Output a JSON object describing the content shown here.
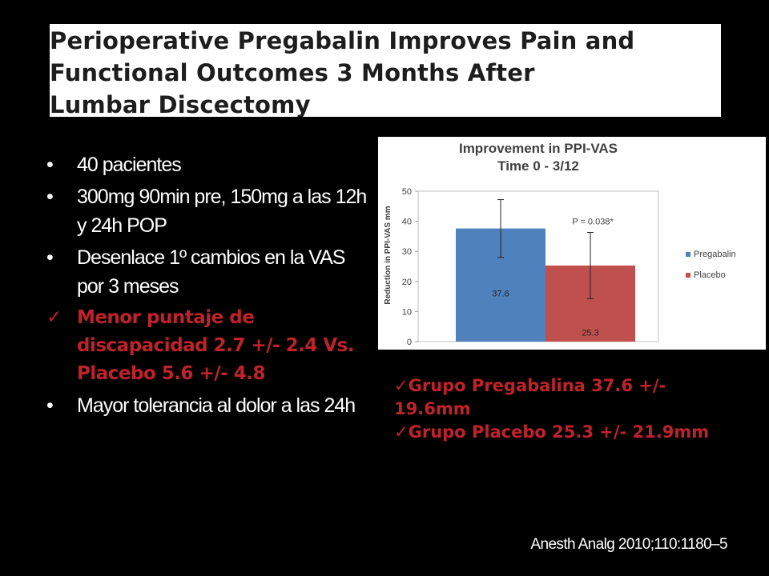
{
  "slide": {
    "title_lines": [
      "Perioperative Pregabalin Improves Pain and",
      "Functional Outcomes 3 Months After",
      "Lumbar Discectomy"
    ],
    "bullets": [
      {
        "marker": "•",
        "text": "40 pacientes",
        "style": "normal"
      },
      {
        "marker": "•",
        "text": "300mg 90min pre, 150mg a las 12h y 24h POP",
        "style": "normal"
      },
      {
        "marker": "•",
        "text": "Desenlace 1º cambios en la VAS por 3 meses",
        "style": "normal"
      },
      {
        "marker": "✓",
        "text": "Menor puntaje de discapacidad 2.7 +/- 2.4 Vs. Placebo 5.6 +/- 4.8",
        "style": "red"
      },
      {
        "marker": "•",
        "text": "Mayor tolerancia al dolor a las 24h",
        "style": "normal"
      }
    ],
    "right_notes": [
      {
        "marker": "✓",
        "text": "Grupo Pregabalina 37.6 +/- 19.6mm"
      },
      {
        "marker": "✓",
        "text": "Grupo Placebo 25.3 +/- 21.9mm"
      }
    ],
    "citation": "Anesth Analg 2010;110:1180–5",
    "colors": {
      "background": "#000000",
      "accent_red": "#c0222a",
      "pregabalin": "#4f81bd",
      "placebo": "#c0504d"
    }
  },
  "chart_data": {
    "type": "bar",
    "title": "Improvement in PPI-VAS",
    "subtitle": "Time 0 - 3/12",
    "ylabel": "Reduction in PPI-VAS mm",
    "xlabel": "",
    "ylim": [
      0,
      50
    ],
    "yticks": [
      0,
      10,
      20,
      30,
      40,
      50
    ],
    "series": [
      {
        "name": "Pregabalin",
        "value": 37.6,
        "label": "37.6",
        "error": 9.6,
        "color": "#4f81bd"
      },
      {
        "name": "Placebo",
        "value": 25.3,
        "label": "25.3",
        "error": 11,
        "color": "#c0504d"
      }
    ],
    "annotation": "P = 0.038*",
    "legend": "right",
    "grid": false
  }
}
